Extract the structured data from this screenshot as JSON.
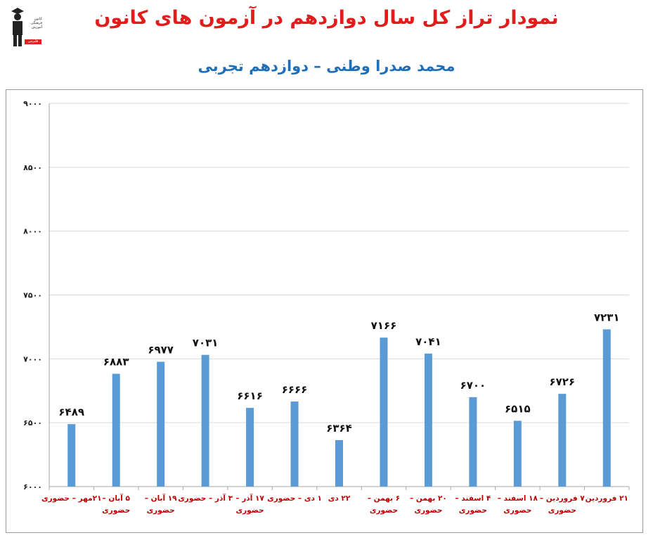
{
  "logo": {
    "lines": [
      "کانون",
      "فرهنگی",
      "آموزش"
    ],
    "tag": "قلم‌چی"
  },
  "chart_data": {
    "type": "bar",
    "title": "نمودار تراز کل سال دوازدهم در آزمون های کانون",
    "subtitle": "محمد صدرا وطنی – دوازدهم تجربی",
    "xlabel": "",
    "ylabel": "",
    "ylim": [
      6000,
      9000
    ],
    "yticks": [
      "۶۰۰۰",
      "۶۵۰۰",
      "۷۰۰۰",
      "۷۵۰۰",
      "۸۰۰۰",
      "۸۵۰۰",
      "۹۰۰۰"
    ],
    "ytick_values": [
      6000,
      6500,
      7000,
      7500,
      8000,
      8500,
      9000
    ],
    "grid": true,
    "legend": "none",
    "bar_color": "#5b9bd5",
    "category_color": "#c00000",
    "categories": [
      [
        "۲۱مهر – حضوری"
      ],
      [
        "۵ آبان –",
        "حضوری"
      ],
      [
        "۱۹ آبان –",
        "حضوری"
      ],
      [
        "۳ آذر – حضوری"
      ],
      [
        "۱۷ آذر –",
        "حضوری"
      ],
      [
        "۱ دی – حضوری"
      ],
      [
        "۲۲ دی"
      ],
      [
        "۶ بهمن –",
        "حضوری"
      ],
      [
        "۲۰ بهمن –",
        "حضوری"
      ],
      [
        "۴ اسفند –",
        "حضوری"
      ],
      [
        "۱۸ اسفند –",
        "حضوری"
      ],
      [
        "۷ فروردین –",
        "حضوری"
      ],
      [
        "۲۱ فروردین"
      ]
    ],
    "values": [
      6489,
      6883,
      6977,
      7031,
      6616,
      6666,
      6364,
      7166,
      7041,
      6700,
      6515,
      6726,
      7231
    ],
    "data_labels": [
      "۶۴۸۹",
      "۶۸۸۳",
      "۶۹۷۷",
      "۷۰۳۱",
      "۶۶۱۶",
      "۶۶۶۶",
      "۶۳۶۴",
      "۷۱۶۶",
      "۷۰۴۱",
      "۶۷۰۰",
      "۶۵۱۵",
      "۶۷۲۶",
      "۷۲۳۱"
    ]
  }
}
